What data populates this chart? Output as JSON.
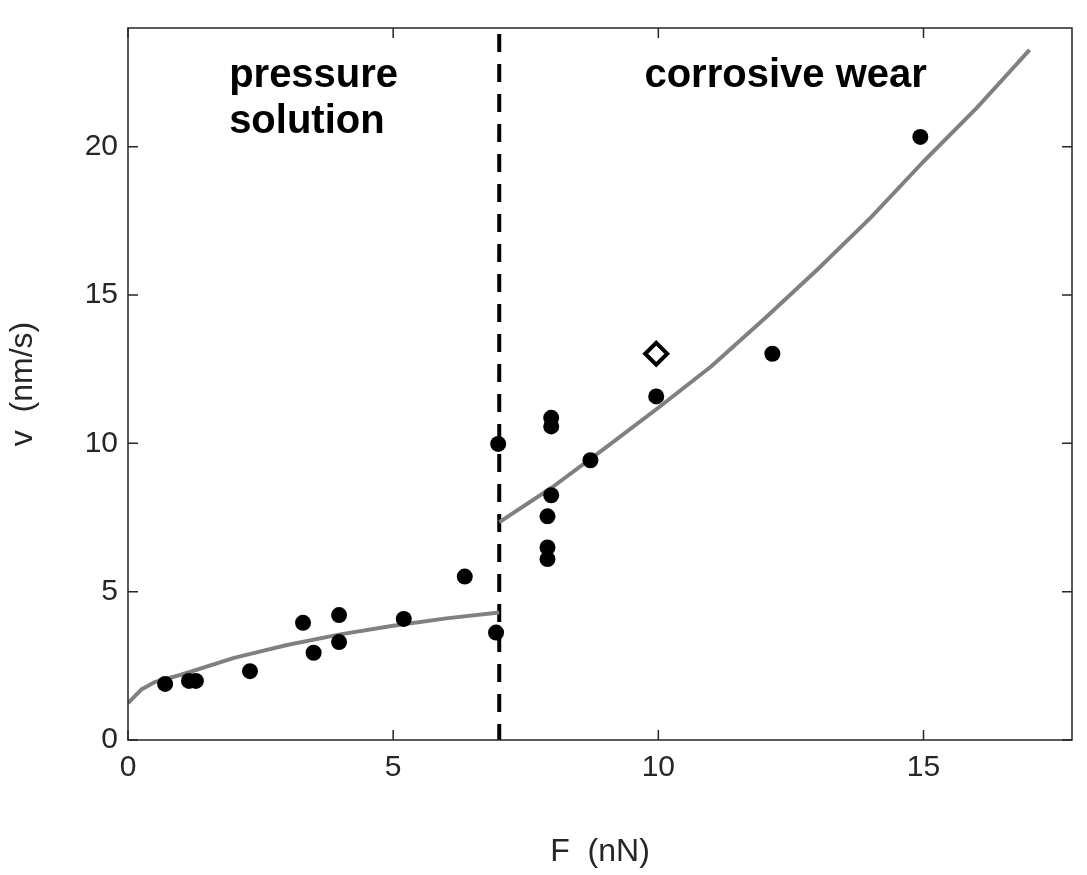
{
  "chart_data": {
    "type": "scatter",
    "xlabel": "F  (nN)",
    "ylabel": "v  (nm/s)",
    "xlim": [
      0,
      17.8
    ],
    "ylim": [
      0,
      24
    ],
    "xticks": [
      0,
      5,
      10,
      15
    ],
    "yticks": [
      0,
      5,
      10,
      15,
      20
    ],
    "grid": false,
    "legend": false,
    "series": [
      {
        "type": "scatter",
        "marker": "circle",
        "color": "#000000",
        "x": [
          0.7,
          1.15,
          1.28,
          2.3,
          3.3,
          3.5,
          3.98,
          3.98,
          5.2,
          6.35,
          6.94,
          6.98,
          7.91,
          7.91,
          7.91,
          7.98,
          7.98,
          7.98,
          8.72,
          9.96,
          12.15,
          14.94
        ],
        "values": [
          1.89,
          1.99,
          1.99,
          2.32,
          3.95,
          2.94,
          4.21,
          3.3,
          4.08,
          5.51,
          3.62,
          9.98,
          6.1,
          6.49,
          7.54,
          8.25,
          10.57,
          10.86,
          9.43,
          11.58,
          13.02,
          20.33
        ]
      },
      {
        "type": "scatter",
        "marker": "diamond",
        "color": "#000000",
        "x": [
          9.96
        ],
        "values": [
          13.02
        ]
      },
      {
        "type": "line",
        "marker": "none",
        "color": "#808080",
        "x": [
          0,
          0.25,
          0.5,
          1,
          2,
          3,
          4,
          5,
          6,
          7
        ],
        "values": [
          1.24,
          1.7,
          1.95,
          2.2,
          2.77,
          3.2,
          3.56,
          3.85,
          4.1,
          4.3
        ]
      },
      {
        "type": "line",
        "marker": "none",
        "color": "#808080",
        "x": [
          7,
          8,
          9,
          10,
          11,
          12,
          13,
          14,
          15,
          16,
          17
        ],
        "values": [
          7.34,
          8.52,
          9.85,
          11.2,
          12.6,
          14.2,
          15.86,
          17.6,
          19.5,
          21.3,
          23.26
        ]
      }
    ],
    "ref_lines": [
      {
        "axis": "x",
        "value": 7,
        "color": "#000000",
        "line_style": "dashed"
      }
    ],
    "annotations": [
      "pressure solution",
      "corrosive wear"
    ]
  }
}
